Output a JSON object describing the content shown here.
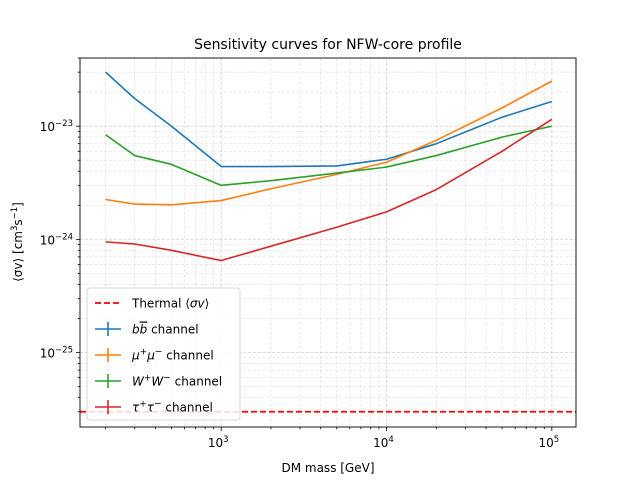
{
  "chart_data": {
    "type": "line",
    "title": "Sensitivity curves for NFW-core profile",
    "xlabel": "DM mass [GeV]",
    "ylabel_parts": {
      "pre": "⟨σv⟩ [cm",
      "sup1": "3",
      "mid": "s",
      "sup2": "−1",
      "post": "]"
    },
    "x_scale": "log",
    "y_scale": "log",
    "xlim": [
      140,
      140000
    ],
    "ylim": [
      2.2e-26,
      4e-23
    ],
    "x_ticks": [
      {
        "value": 1000,
        "base": "10",
        "exp": "3"
      },
      {
        "value": 10000,
        "base": "10",
        "exp": "4"
      },
      {
        "value": 100000,
        "base": "10",
        "exp": "5"
      }
    ],
    "y_ticks": [
      {
        "value": 1e-25,
        "base": "10",
        "exp": "−25"
      },
      {
        "value": 1e-24,
        "base": "10",
        "exp": "−24"
      },
      {
        "value": 1e-23,
        "base": "10",
        "exp": "−23"
      }
    ],
    "grid": true,
    "legend_position": "lower-left",
    "x": [
      200,
      300,
      500,
      1000,
      2000,
      5000,
      10000,
      20000,
      50000,
      100000
    ],
    "series": [
      {
        "name_html": "<tspan font-style='italic'>b</tspan><tspan font-style='italic' text-decoration='overline'>b</tspan> channel",
        "color": "#1f77b4",
        "values": [
          3e-23,
          1.75e-23,
          1e-23,
          4.4e-24,
          4.4e-24,
          4.45e-24,
          5.1e-24,
          7e-24,
          1.2e-23,
          1.65e-23
        ]
      },
      {
        "name_html": "<tspan font-style='italic'>μ</tspan><tspan baseline-shift='super' font-size='9'>+</tspan><tspan font-style='italic'>μ</tspan><tspan baseline-shift='super' font-size='9'>−</tspan> channel",
        "color": "#ff7f0e",
        "values": [
          2.25e-24,
          2.05e-24,
          2.02e-24,
          2.2e-24,
          2.8e-24,
          3.75e-24,
          4.8e-24,
          7.5e-24,
          1.45e-23,
          2.5e-23
        ]
      },
      {
        "name_html": "<tspan font-style='italic'>W</tspan><tspan baseline-shift='super' font-size='9'>+</tspan><tspan font-style='italic'>W</tspan><tspan baseline-shift='super' font-size='9'>−</tspan> channel",
        "color": "#2ca02c",
        "values": [
          8.4e-24,
          5.5e-24,
          4.6e-24,
          3e-24,
          3.3e-24,
          3.85e-24,
          4.35e-24,
          5.5e-24,
          8e-24,
          1e-23
        ]
      },
      {
        "name_html": "<tspan font-style='italic'>τ</tspan><tspan baseline-shift='super' font-size='9'>+</tspan><tspan font-style='italic'>τ</tspan><tspan baseline-shift='super' font-size='9'>−</tspan> channel",
        "color": "#d62728",
        "values": [
          9.5e-25,
          9.1e-25,
          8e-25,
          6.5e-25,
          8.7e-25,
          1.28e-24,
          1.75e-24,
          2.75e-24,
          6e-24,
          1.15e-23
        ]
      }
    ],
    "reference_line": {
      "name_html": "Thermal ⟨<tspan font-style='italic'>σv</tspan>⟩",
      "value": 3e-26,
      "color": "#ff0000",
      "style": "dashed"
    }
  }
}
